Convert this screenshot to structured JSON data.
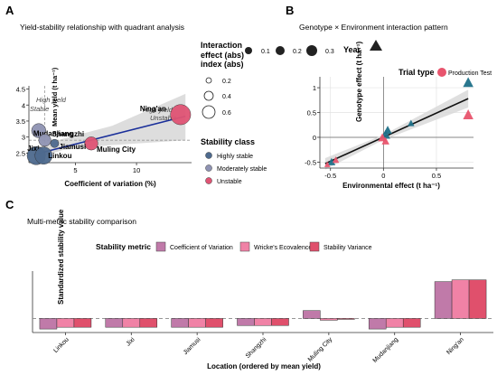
{
  "panels": {
    "A": {
      "letter": "A",
      "title": "Yield-stability relationship with quadrant analysis"
    },
    "B": {
      "letter": "B",
      "title": "Genotype × Environment interaction pattern"
    },
    "C": {
      "letter": "C",
      "title": "Multi-metric stability comparison"
    }
  },
  "legends": {
    "interaction": {
      "title_lines": [
        "Interaction",
        "effect (abs)"
      ],
      "values": [
        "0.1",
        "0.2",
        "0.3"
      ]
    },
    "year": {
      "title": "Year"
    },
    "trial_type": {
      "title": "Trial type",
      "item": "Production Test"
    },
    "index": {
      "title": "index (abs)",
      "values": [
        "0.2",
        "0.4",
        "0.6"
      ]
    },
    "stability_class": {
      "title": "Stability class",
      "items": [
        "Highly stable",
        "Moderately stable",
        "Unstable"
      ]
    }
  },
  "colors": {
    "highly_stable": "#4e6a8e",
    "moderately_stable": "#8f93b3",
    "unstable": "#e05474",
    "teal": "#1d7088",
    "pink": "#e8546d",
    "cv": "#c07aa9",
    "wricke": "#f082a6",
    "sv": "#e0506c",
    "regression_a": "#1a2f9a",
    "ribbon": "#d9d9d9"
  },
  "chart_data": [
    {
      "type": "scatter",
      "title": "Yield-stability relationship with quadrant analysis",
      "xlabel": "Coefficient of variation (%)",
      "ylabel": "Mean yield (t ha⁻¹)",
      "xlim": [
        1.2,
        14.5
      ],
      "ylim": [
        2.2,
        4.6
      ],
      "xticks": [
        5,
        10
      ],
      "yticks": [
        2.5,
        3.0,
        3.5,
        4.0,
        4.5
      ],
      "grid": false,
      "reference_lines": {
        "x": 2.5,
        "y": 2.9
      },
      "quadrant_labels": [
        "High yield",
        "Stable",
        "High yield",
        "Unstable"
      ],
      "points": [
        {
          "label": "Ning'an",
          "x": 13.6,
          "y": 3.7,
          "class": "Unstable",
          "index": 0.7
        },
        {
          "label": "Mudanjiang",
          "x": 2.0,
          "y": 3.2,
          "class": "Moderately stable",
          "index": 0.4
        },
        {
          "label": "Shangzhi",
          "x": 2.5,
          "y": 2.9,
          "class": "Moderately stable",
          "index": 0.3
        },
        {
          "label": "Muling City",
          "x": 6.3,
          "y": 2.8,
          "class": "Unstable",
          "index": 0.35
        },
        {
          "label": "Jiamusi",
          "x": 3.3,
          "y": 2.8,
          "class": "Highly stable",
          "index": 0.1
        },
        {
          "label": "Jixi",
          "x": 1.8,
          "y": 2.42,
          "class": "Highly stable",
          "index": 0.6
        },
        {
          "label": "Linkou",
          "x": 2.4,
          "y": 2.42,
          "class": "Highly stable",
          "index": 0.55
        }
      ],
      "regression": {
        "x": [
          1.6,
          14.0
        ],
        "y": [
          2.45,
          3.65
        ]
      },
      "ribbon": {
        "x": [
          1.6,
          4.0,
          8.0,
          14.0
        ],
        "lower": [
          2.3,
          2.6,
          2.75,
          2.9
        ],
        "upper": [
          2.65,
          2.95,
          3.35,
          4.35
        ]
      }
    },
    {
      "type": "scatter",
      "title": "Genotype × Environment interaction pattern",
      "xlabel": "Environmental effect (t ha⁻¹)",
      "ylabel": "Genotype effect (t ha⁻¹)",
      "xlim": [
        -0.6,
        0.85
      ],
      "ylim": [
        -0.62,
        1.22
      ],
      "xticks": [
        -0.5,
        0.0,
        0.5
      ],
      "yticks": [
        -0.5,
        0.0,
        0.5,
        1.0
      ],
      "grid": true,
      "points": [
        {
          "x": 0.8,
          "y": 1.1,
          "type": "teal",
          "size": 0.3
        },
        {
          "x": 0.8,
          "y": 0.45,
          "type": "pink",
          "size": 0.3
        },
        {
          "x": 0.26,
          "y": 0.28,
          "type": "teal",
          "size": 0.1
        },
        {
          "x": 0.04,
          "y": 0.14,
          "type": "teal",
          "size": 0.2
        },
        {
          "x": 0.02,
          "y": 0.05,
          "type": "teal",
          "size": 0.25
        },
        {
          "x": -0.01,
          "y": -0.01,
          "type": "pink",
          "size": 0.2
        },
        {
          "x": 0.02,
          "y": -0.08,
          "type": "pink",
          "size": 0.15
        },
        {
          "x": -0.49,
          "y": -0.5,
          "type": "teal",
          "size": 0.15
        },
        {
          "x": -0.45,
          "y": -0.46,
          "type": "pink",
          "size": 0.1
        },
        {
          "x": -0.53,
          "y": -0.55,
          "type": "pink",
          "size": 0.05
        }
      ],
      "regression": {
        "x": [
          -0.55,
          0.8
        ],
        "y": [
          -0.53,
          0.78
        ]
      },
      "ribbon": {
        "x": [
          -0.55,
          0.0,
          0.8
        ],
        "lower": [
          -0.65,
          -0.05,
          0.6
        ],
        "upper": [
          -0.42,
          0.05,
          0.96
        ]
      }
    },
    {
      "type": "bar",
      "title": "Multi-metric stability comparison",
      "xlabel": "Location (ordered by mean yield)",
      "ylabel": "Standardized stability value",
      "legend_title": "Stability metric",
      "categories": [
        "Linkou",
        "Jixi",
        "Jiamusi",
        "Shangzhi",
        "Muling City",
        "Mudanjiang",
        "Ning'an"
      ],
      "ylim": [
        -0.8,
        2.7
      ],
      "series": [
        {
          "name": "Coefficient of Variation",
          "values": [
            -0.6,
            -0.5,
            -0.5,
            -0.4,
            0.45,
            -0.6,
            2.1
          ]
        },
        {
          "name": "Wricke's Ecovalence",
          "values": [
            -0.5,
            -0.5,
            -0.5,
            -0.4,
            -0.1,
            -0.5,
            2.2
          ]
        },
        {
          "name": "Stability Variance",
          "values": [
            -0.5,
            -0.5,
            -0.5,
            -0.4,
            -0.05,
            -0.5,
            2.2
          ]
        }
      ]
    }
  ]
}
